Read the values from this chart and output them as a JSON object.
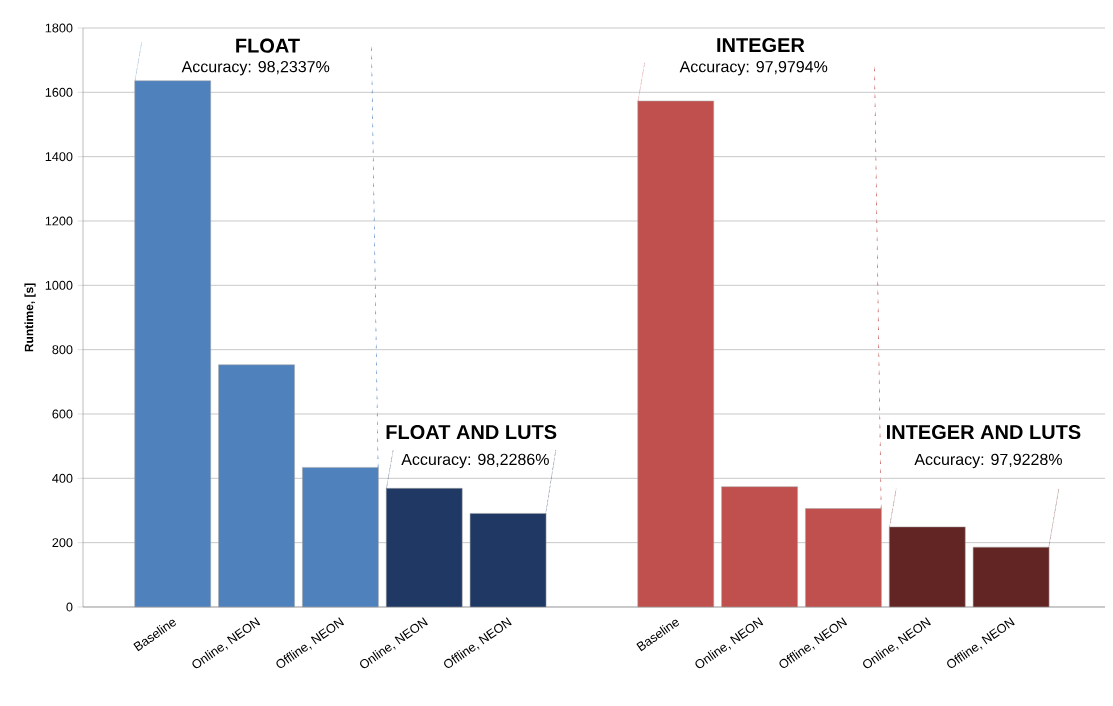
{
  "chart_data": {
    "type": "bar",
    "ylabel": "Runtime, [s]",
    "categories": [
      "Baseline",
      "Online, NEON",
      "Offline, NEON",
      "Online, NEON",
      "Offline, NEON",
      null,
      "Baseline",
      "Online, NEON",
      "Offline, NEON",
      "Online, NEON",
      "Offline, NEON"
    ],
    "series": [
      {
        "color": "#4f81bd",
        "values": [
          1636,
          753,
          434,
          null,
          null,
          null,
          null,
          null,
          null,
          null,
          null
        ]
      },
      {
        "color": "#1f3864",
        "values": [
          null,
          null,
          null,
          369,
          291,
          null,
          null,
          null,
          null,
          null,
          null
        ]
      },
      {
        "color": "#c0504d",
        "values": [
          null,
          null,
          null,
          null,
          null,
          null,
          1573,
          374,
          306,
          null,
          null
        ]
      },
      {
        "color": "#632523",
        "values": [
          null,
          null,
          null,
          null,
          null,
          null,
          null,
          null,
          null,
          249,
          186
        ]
      }
    ],
    "ylim": [
      0,
      1800
    ],
    "yticks": [
      0,
      200,
      400,
      600,
      800,
      1000,
      1200,
      1400,
      1600,
      1800
    ],
    "grid": "y",
    "annotations": [
      "FLOAT",
      "Accuracy: 98,2337%",
      "FLOAT AND LUTS",
      "Accuracy: 98,2286%",
      "INTEGER",
      "Accuracy: 97,9794%",
      "INTEGER AND LUTS",
      "Accuracy: 97,9228%"
    ]
  }
}
